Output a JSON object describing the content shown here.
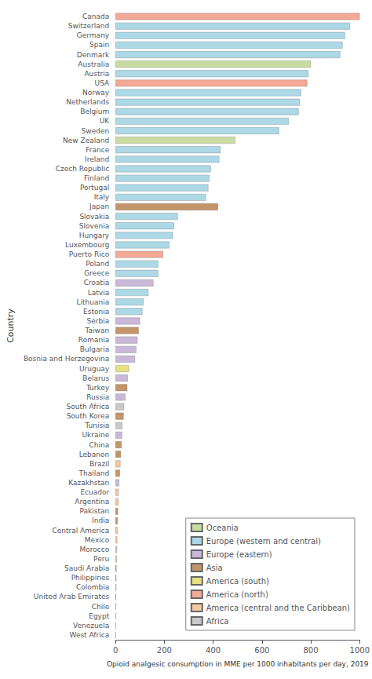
{
  "chart_data": {
    "type": "bar",
    "orientation": "horizontal",
    "xlabel": "Opioid analgesic consumption in MME per 1000 inhabitants per day, 2019",
    "ylabel": "Country",
    "categories": [
      "Canada",
      "Switzerland",
      "Germany",
      "Spain",
      "Denmark",
      "Australia",
      "Austria",
      "USA",
      "Norway",
      "Netherlands",
      "Belgium",
      "UK",
      "Sweden",
      "New Zealand",
      "France",
      "Ireland",
      "Czech Republic",
      "Finland",
      "Portugal",
      "Italy",
      "Japan",
      "Slovakia",
      "Slovenia",
      "Hungary",
      "Luxembourg",
      "Puerto Rico",
      "Poland",
      "Greece",
      "Croatia",
      "Latvia",
      "Lithuania",
      "Estonia",
      "Serbia",
      "Taiwan",
      "Romania",
      "Bulgaria",
      "Bosnia and Herzegovina",
      "Uruguay",
      "Belarus",
      "Turkey",
      "Russia",
      "South Africa",
      "South Korea",
      "Tunisia",
      "Ukraine",
      "China",
      "Lebanon",
      "Brazil",
      "Thailand",
      "Kazakhstan",
      "Ecuador",
      "Argentina",
      "Pakistan",
      "India",
      "Central America",
      "Mexico",
      "Morocco",
      "Peru",
      "Saudi Arabia",
      "Philippines",
      "Colombia",
      "United Arab Emirates",
      "Chile",
      "Egypt",
      "Venezuela",
      "West Africa"
    ],
    "series": [
      {
        "name": "Oceania",
        "color": "#c8dba0",
        "values": [
          null,
          null,
          null,
          null,
          null,
          800,
          null,
          null,
          null,
          null,
          null,
          null,
          null,
          490,
          null,
          null,
          null,
          null,
          null,
          null,
          null,
          null,
          null,
          null,
          null,
          null,
          null,
          null,
          null,
          null,
          null,
          null,
          null,
          null,
          null,
          null,
          null,
          null,
          null,
          null,
          null,
          null,
          null,
          null,
          null,
          null,
          null,
          null,
          null,
          null,
          null,
          null,
          null,
          null,
          null,
          null,
          null,
          null,
          null,
          null,
          null,
          null,
          null,
          null,
          null,
          null
        ]
      },
      {
        "name": "Europe (western and central)",
        "color": "#add8e6",
        "values": [
          null,
          960,
          940,
          930,
          920,
          null,
          790,
          null,
          760,
          755,
          750,
          710,
          670,
          null,
          430,
          425,
          390,
          385,
          380,
          370,
          null,
          255,
          240,
          235,
          220,
          null,
          175,
          175,
          null,
          135,
          115,
          110,
          null,
          null,
          null,
          null,
          null,
          null,
          null,
          null,
          null,
          null,
          null,
          null,
          null,
          null,
          null,
          null,
          null,
          null,
          null,
          null,
          null,
          null,
          null,
          null,
          null,
          null,
          null,
          null,
          null,
          null,
          null,
          null,
          null,
          null
        ]
      },
      {
        "name": "Europe (eastern)",
        "color": "#c9b8d8",
        "values": [
          null,
          null,
          null,
          null,
          null,
          null,
          null,
          null,
          null,
          null,
          null,
          null,
          null,
          null,
          null,
          null,
          null,
          null,
          null,
          null,
          null,
          null,
          null,
          null,
          null,
          null,
          null,
          null,
          155,
          null,
          null,
          null,
          100,
          null,
          90,
          85,
          80,
          null,
          50,
          null,
          40,
          null,
          null,
          null,
          27,
          null,
          null,
          null,
          null,
          15,
          null,
          null,
          null,
          null,
          null,
          null,
          null,
          null,
          null,
          null,
          null,
          null,
          null,
          null,
          null,
          null
        ]
      },
      {
        "name": "Asia",
        "color": "#c4956a",
        "values": [
          null,
          null,
          null,
          null,
          null,
          null,
          null,
          null,
          null,
          null,
          null,
          null,
          null,
          null,
          null,
          null,
          null,
          null,
          null,
          null,
          420,
          null,
          null,
          null,
          null,
          null,
          null,
          null,
          null,
          null,
          null,
          null,
          null,
          95,
          null,
          null,
          null,
          null,
          null,
          48,
          null,
          null,
          33,
          null,
          null,
          25,
          22,
          null,
          18,
          null,
          null,
          null,
          10,
          9,
          null,
          null,
          null,
          null,
          4,
          3,
          null,
          2,
          null,
          null,
          null,
          null
        ]
      },
      {
        "name": "America (south)",
        "color": "#e8e080",
        "values": [
          null,
          null,
          null,
          null,
          null,
          null,
          null,
          null,
          null,
          null,
          null,
          null,
          null,
          null,
          null,
          null,
          null,
          null,
          null,
          null,
          null,
          null,
          null,
          null,
          null,
          null,
          null,
          null,
          null,
          null,
          null,
          null,
          null,
          null,
          null,
          null,
          null,
          55,
          null,
          null,
          null,
          null,
          null,
          null,
          null,
          null,
          null,
          null,
          null,
          null,
          null,
          null,
          null,
          null,
          null,
          null,
          null,
          null,
          null,
          null,
          null,
          null,
          null,
          null,
          null,
          null
        ]
      },
      {
        "name": "America (north)",
        "color": "#f4a896",
        "values": [
          1000,
          null,
          null,
          null,
          null,
          null,
          null,
          785,
          null,
          null,
          null,
          null,
          null,
          null,
          null,
          null,
          null,
          null,
          null,
          null,
          null,
          null,
          null,
          null,
          null,
          195,
          null,
          null,
          null,
          null,
          null,
          null,
          null,
          null,
          null,
          null,
          null,
          null,
          null,
          null,
          null,
          null,
          null,
          null,
          null,
          null,
          null,
          null,
          null,
          null,
          null,
          null,
          null,
          null,
          null,
          null,
          null,
          null,
          null,
          null,
          null,
          null,
          null,
          null,
          null,
          null
        ]
      },
      {
        "name": "America (central and the Caribbean)",
        "color": "#f4c8a0",
        "values": [
          null,
          null,
          null,
          null,
          null,
          null,
          null,
          null,
          null,
          null,
          null,
          null,
          null,
          null,
          null,
          null,
          null,
          null,
          null,
          null,
          null,
          null,
          null,
          null,
          null,
          null,
          null,
          null,
          null,
          null,
          null,
          null,
          null,
          null,
          null,
          null,
          null,
          null,
          null,
          null,
          null,
          null,
          null,
          null,
          null,
          null,
          null,
          20,
          null,
          null,
          13,
          12,
          null,
          null,
          8,
          7,
          null,
          5,
          null,
          null,
          3,
          null,
          2,
          null,
          1,
          null
        ]
      },
      {
        "name": "Africa",
        "color": "#c9c9c9",
        "values": [
          null,
          null,
          null,
          null,
          null,
          null,
          null,
          null,
          null,
          null,
          null,
          null,
          null,
          null,
          null,
          null,
          null,
          null,
          null,
          null,
          null,
          null,
          null,
          null,
          null,
          null,
          null,
          null,
          null,
          null,
          null,
          null,
          null,
          null,
          null,
          null,
          null,
          null,
          null,
          null,
          null,
          35,
          null,
          28,
          null,
          null,
          null,
          null,
          null,
          null,
          null,
          null,
          null,
          null,
          null,
          null,
          6,
          null,
          null,
          null,
          null,
          null,
          null,
          2,
          null,
          1
        ]
      }
    ],
    "xlim": [
      0,
      1000
    ],
    "xticks": [
      0,
      200,
      400,
      600,
      800,
      1000
    ],
    "grid": false,
    "legend": "lower right"
  }
}
